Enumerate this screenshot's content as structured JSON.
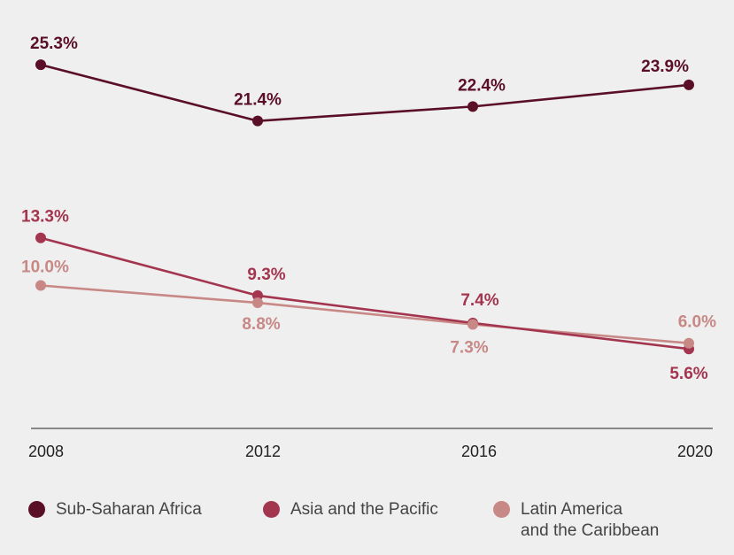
{
  "chart_data": {
    "type": "line",
    "x": [
      "2008",
      "2012",
      "2016",
      "2020"
    ],
    "ylim": [
      0,
      30
    ],
    "grid": false,
    "legend_position": "bottom",
    "series": [
      {
        "name": "Sub-Saharan Africa",
        "color": "#5a0f27",
        "values": [
          25.3,
          21.4,
          22.4,
          23.9
        ],
        "labels": [
          "25.3%",
          "21.4%",
          "22.4%",
          "23.9%"
        ]
      },
      {
        "name": "Asia and the Pacific",
        "color": "#a4354f",
        "values": [
          13.3,
          9.3,
          7.4,
          5.6
        ],
        "labels": [
          "13.3%",
          "9.3%",
          "7.4%",
          "5.6%"
        ]
      },
      {
        "name": "Latin America and the Caribbean",
        "color": "#c78886",
        "values": [
          10.0,
          8.8,
          7.3,
          6.0
        ],
        "labels": [
          "10.0%",
          "8.8%",
          "7.3%",
          "6.0%"
        ]
      }
    ]
  },
  "legend": {
    "items": [
      {
        "lines": [
          "Sub-Saharan Africa"
        ]
      },
      {
        "lines": [
          "Asia and the Pacific"
        ]
      },
      {
        "lines": [
          "Latin America",
          "and the Caribbean"
        ]
      }
    ]
  }
}
